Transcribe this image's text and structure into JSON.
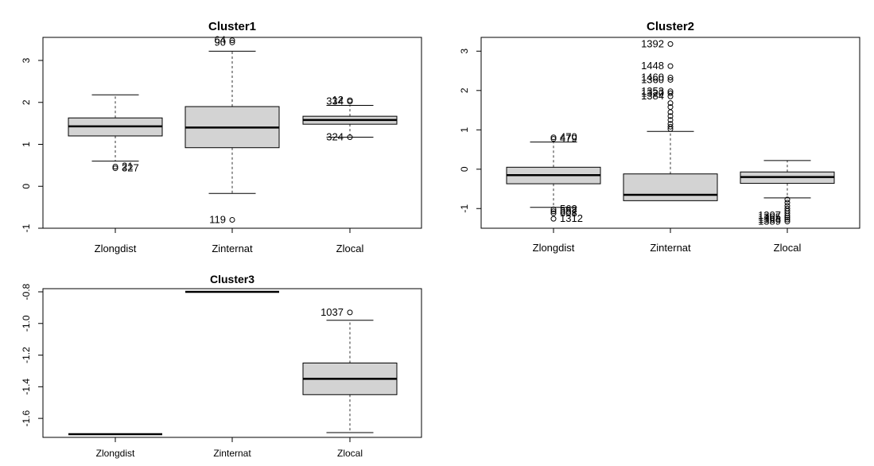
{
  "chart_data": [
    {
      "type": "boxplot",
      "title": "Cluster1",
      "categories": [
        "Zlongdist",
        "Zinternat",
        "Zlocal"
      ],
      "ylim": [
        -1.0,
        3.55
      ],
      "yticks": [
        "-1",
        "0",
        "1",
        "2",
        "3"
      ],
      "ytick_values": [
        -1,
        0,
        1,
        2,
        3
      ],
      "boxes": [
        {
          "whisker_low": 0.6,
          "q1": 1.2,
          "median": 1.43,
          "q3": 1.63,
          "whisker_high": 2.18,
          "outliers": [
            {
              "y": 0.47,
              "label": "21"
            },
            {
              "y": 0.43,
              "label": "327"
            }
          ]
        },
        {
          "whisker_low": -0.17,
          "q1": 0.92,
          "median": 1.4,
          "q3": 1.9,
          "whisker_high": 3.22,
          "outliers": [
            {
              "y": 3.48,
              "label": "64"
            },
            {
              "y": 3.43,
              "label": "90"
            },
            {
              "y": -0.8,
              "label": "119"
            }
          ]
        },
        {
          "whisker_low": 1.17,
          "q1": 1.48,
          "median": 1.58,
          "q3": 1.67,
          "whisker_high": 1.93,
          "outliers": [
            {
              "y": 2.05,
              "label": "12"
            },
            {
              "y": 2.02,
              "label": "334"
            },
            {
              "y": 1.17,
              "label": "324"
            }
          ]
        }
      ]
    },
    {
      "type": "boxplot",
      "title": "Cluster2",
      "categories": [
        "Zlongdist",
        "Zinternat",
        "Zlocal"
      ],
      "ylim": [
        -1.5,
        3.35
      ],
      "yticks": [
        "-1",
        "0",
        "1",
        "2",
        "3"
      ],
      "ytick_values": [
        -1,
        0,
        1,
        2,
        3
      ],
      "boxes": [
        {
          "whisker_low": -0.97,
          "q1": -0.37,
          "median": -0.15,
          "q3": 0.05,
          "whisker_high": 0.69,
          "outliers": [
            {
              "y": 0.81,
              "label": "470"
            },
            {
              "y": 0.77,
              "label": "479"
            },
            {
              "y": -1.02,
              "label": "562"
            },
            {
              "y": -1.07,
              "label": "582"
            },
            {
              "y": -1.12,
              "label": "603"
            },
            {
              "y": -1.26,
              "label": "1312"
            }
          ]
        },
        {
          "whisker_low": -0.8,
          "q1": -0.8,
          "median": -0.65,
          "q3": -0.12,
          "whisker_high": 0.96,
          "outliers": [
            {
              "y": 3.18,
              "label": "1392"
            },
            {
              "y": 2.62,
              "label": "1448"
            },
            {
              "y": 2.33,
              "label": "1460"
            },
            {
              "y": 2.27,
              "label": "1360"
            },
            {
              "y": 1.98,
              "label": "1353"
            },
            {
              "y": 1.93,
              "label": "1320"
            },
            {
              "y": 1.85,
              "label": "1384"
            },
            {
              "y": 1.68
            },
            {
              "y": 1.58
            },
            {
              "y": 1.45
            },
            {
              "y": 1.35
            },
            {
              "y": 1.25
            },
            {
              "y": 1.15
            },
            {
              "y": 1.08
            },
            {
              "y": 1.02
            }
          ]
        },
        {
          "whisker_low": -0.73,
          "q1": -0.36,
          "median": -0.2,
          "q3": -0.07,
          "whisker_high": 0.22,
          "outliers": [
            {
              "y": -0.77
            },
            {
              "y": -0.85
            },
            {
              "y": -0.93
            },
            {
              "y": -1.0
            },
            {
              "y": -1.06
            },
            {
              "y": -1.12
            },
            {
              "y": -1.18,
              "label": "1307"
            },
            {
              "y": -1.23,
              "label": "1365"
            },
            {
              "y": -1.28,
              "label": "1368"
            },
            {
              "y": -1.33,
              "label": "1389"
            }
          ]
        }
      ]
    },
    {
      "type": "boxplot",
      "title": "Cluster3",
      "categories": [
        "Zlongdist",
        "Zinternat",
        "Zlocal"
      ],
      "ylim": [
        -1.72,
        -0.78
      ],
      "yticks": [
        "-1.6",
        "-1.4",
        "-1.2",
        "-1.0",
        "-0.8"
      ],
      "ytick_values": [
        -1.6,
        -1.4,
        -1.2,
        -1.0,
        -0.8
      ],
      "boxes": [
        {
          "whisker_low": -1.7,
          "q1": -1.7,
          "median": -1.7,
          "q3": -1.7,
          "whisker_high": -1.7,
          "outliers": []
        },
        {
          "whisker_low": -0.8,
          "q1": -0.8,
          "median": -0.8,
          "q3": -0.8,
          "whisker_high": -0.8,
          "outliers": []
        },
        {
          "whisker_low": -1.69,
          "q1": -1.45,
          "median": -1.35,
          "q3": -1.25,
          "whisker_high": -0.98,
          "outliers": [
            {
              "y": -0.93,
              "label": "1037"
            }
          ]
        }
      ]
    }
  ]
}
